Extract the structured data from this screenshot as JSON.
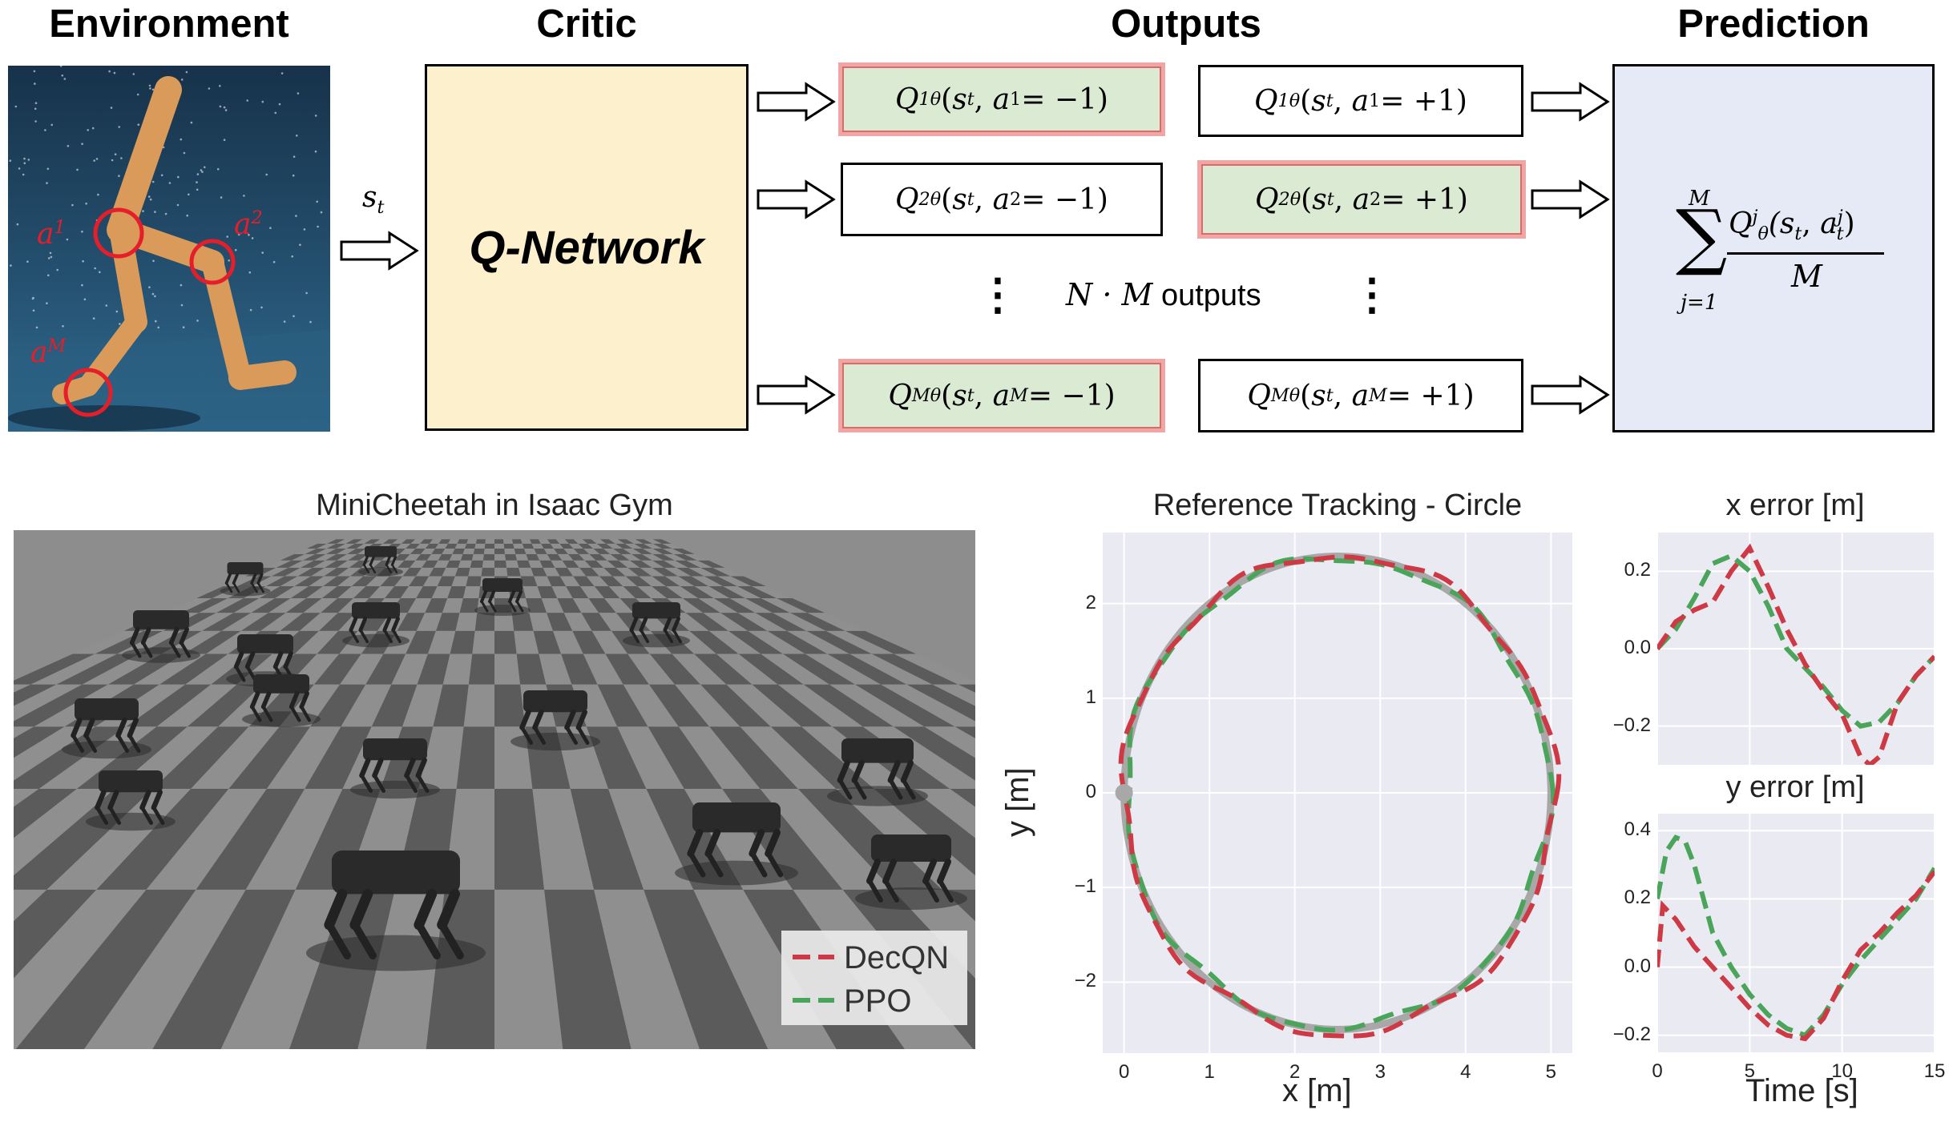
{
  "sections": {
    "environment": "Environment",
    "critic": "Critic",
    "outputs": "Outputs",
    "prediction": "Prediction"
  },
  "critic_box": {
    "label": "Q-Network",
    "input": "s",
    "input_sub": "t"
  },
  "env_labels": {
    "a1": "a",
    "a1_sup": "1",
    "a2": "a",
    "a2_sup": "2",
    "aM": "a",
    "aM_sup": "M"
  },
  "outputs": {
    "rows": [
      {
        "left": {
          "sup": "1",
          "arg": "a",
          "asup": "1",
          "val": " = −1"
        },
        "right": {
          "sup": "1",
          "arg": "a",
          "asup": "1",
          "val": " = +1"
        }
      },
      {
        "left": {
          "sup": "2",
          "arg": "a",
          "asup": "2",
          "val": " = −1"
        },
        "right": {
          "sup": "2",
          "arg": "a",
          "asup": "2",
          "val": " = +1"
        }
      },
      {
        "left": {
          "sup": "M",
          "arg": "a",
          "asup": "M",
          "val": " = −1"
        },
        "right": {
          "sup": "M",
          "arg": "a",
          "asup": "M",
          "val": " = +1"
        }
      }
    ],
    "middle_label_math": "N · M",
    "middle_label_text": " outputs",
    "dots": "⋮"
  },
  "prediction_formula": {
    "sum_top": "M",
    "sum_bottom": "j=1",
    "numerator_sup": "j",
    "numerator_arg": "(s",
    "numerator_sub": "t",
    "numerator_a_sup": "j",
    "numerator_a_sub": "t",
    "denominator": "M"
  },
  "sim_panel": {
    "title": "MiniCheetah in Isaac Gym"
  },
  "legend": [
    {
      "name": "DecQN",
      "color": "#cd3a45"
    },
    {
      "name": "PPO",
      "color": "#4aa55a"
    }
  ],
  "colors": {
    "decqn": "#cd3a45",
    "ppo": "#4aa55a",
    "reference": "#a8a8a8",
    "plot_bg": "#eaeaf2",
    "select_fill": "#dbead3",
    "select_border": "#f1a6a6",
    "prediction_fill": "#e6eaf6",
    "critic_fill": "#fdf0cd"
  },
  "chart_data": [
    {
      "type": "line",
      "title": "Reference Tracking - Circle",
      "xlabel": "x [m]",
      "ylabel": "y [m]",
      "xlim": [
        -0.25,
        5.25
      ],
      "ylim": [
        -2.75,
        2.75
      ],
      "xticks": [
        "0",
        "1",
        "2",
        "3",
        "4",
        "5"
      ],
      "yticks": [
        "−2",
        "−1",
        "0",
        "1",
        "2"
      ],
      "grid": true,
      "series": [
        {
          "name": "Reference",
          "shape": "circle",
          "center": [
            2.5,
            0
          ],
          "radius": 2.5
        },
        {
          "name": "DecQN",
          "shape": "circle",
          "center": [
            2.52,
            -0.02
          ],
          "radius": 2.53
        },
        {
          "name": "PPO",
          "shape": "circle",
          "center": [
            2.5,
            0.0
          ],
          "radius": 2.48
        }
      ]
    },
    {
      "type": "line",
      "title": "x error [m]",
      "xlim": [
        0,
        15
      ],
      "ylim": [
        -0.3,
        0.3
      ],
      "yticks": [
        "0.2",
        "0.0",
        "−0.2"
      ],
      "grid": true,
      "series": [
        {
          "name": "DecQN",
          "x": [
            0,
            1,
            2,
            3,
            4,
            5,
            6,
            7,
            8,
            9,
            10,
            11,
            11.5,
            12,
            12.5,
            13,
            14,
            15
          ],
          "y": [
            0.0,
            0.07,
            0.1,
            0.12,
            0.2,
            0.26,
            0.16,
            0.05,
            -0.04,
            -0.11,
            -0.17,
            -0.28,
            -0.3,
            -0.28,
            -0.21,
            -0.14,
            -0.07,
            -0.02
          ]
        },
        {
          "name": "PPO",
          "x": [
            0,
            1,
            2,
            3,
            4,
            5,
            6,
            7,
            8,
            9,
            10,
            11,
            12,
            13,
            14,
            15
          ],
          "y": [
            0.0,
            0.05,
            0.13,
            0.22,
            0.24,
            0.2,
            0.11,
            0.0,
            -0.05,
            -0.1,
            -0.16,
            -0.2,
            -0.19,
            -0.14,
            -0.07,
            -0.02
          ]
        }
      ]
    },
    {
      "type": "line",
      "title": "y error [m]",
      "xlabel": "Time [s]",
      "xlim": [
        0,
        15
      ],
      "ylim": [
        -0.25,
        0.45
      ],
      "xticks": [
        "0",
        "5",
        "10",
        "15"
      ],
      "yticks": [
        "0.4",
        "0.2",
        "0.0",
        "−0.2"
      ],
      "grid": true,
      "series": [
        {
          "name": "DecQN",
          "x": [
            0,
            0.3,
            1,
            2,
            3,
            4,
            5,
            6,
            7,
            8,
            9,
            10,
            11,
            12,
            13,
            14,
            15
          ],
          "y": [
            0.0,
            0.18,
            0.14,
            0.06,
            0.0,
            -0.06,
            -0.12,
            -0.17,
            -0.2,
            -0.21,
            -0.15,
            -0.04,
            0.05,
            0.1,
            0.16,
            0.21,
            0.28
          ]
        },
        {
          "name": "PPO",
          "x": [
            0,
            0.5,
            1,
            1.5,
            2,
            2.5,
            3,
            4,
            5,
            6,
            7,
            8,
            9,
            10,
            11,
            12,
            13,
            14,
            15
          ],
          "y": [
            0.2,
            0.34,
            0.38,
            0.37,
            0.3,
            0.2,
            0.1,
            0.0,
            -0.08,
            -0.14,
            -0.18,
            -0.2,
            -0.14,
            -0.05,
            0.02,
            0.08,
            0.14,
            0.2,
            0.29
          ]
        }
      ]
    }
  ]
}
